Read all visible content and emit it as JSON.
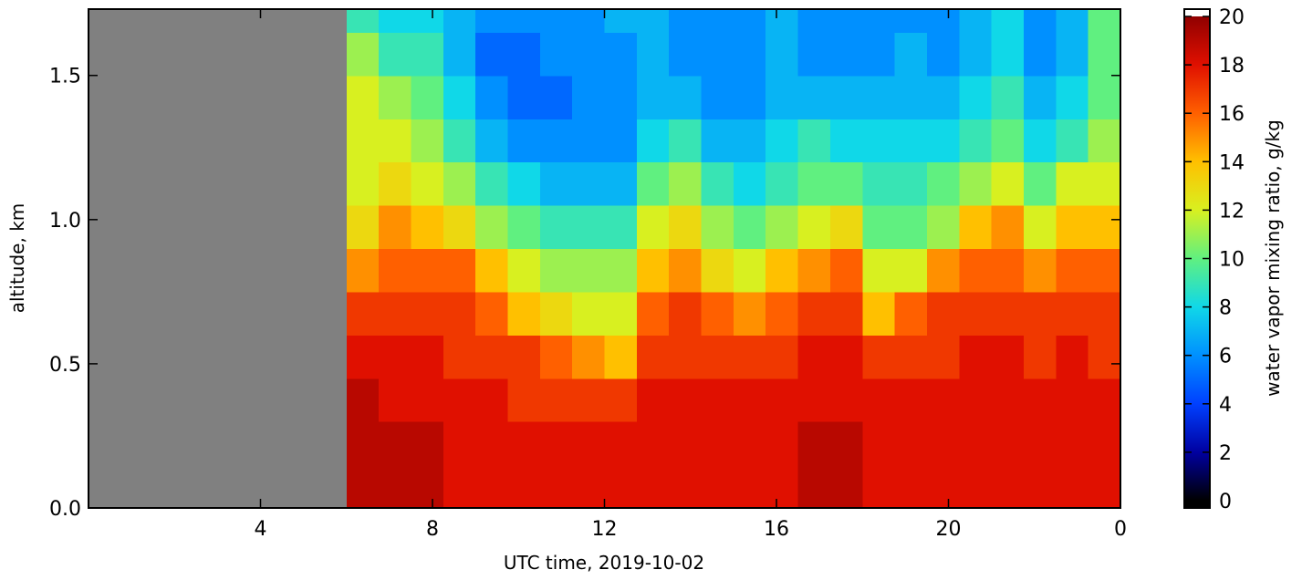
{
  "chart_data": {
    "type": "heatmap",
    "x_label": "UTC time,  2019-10-02",
    "y_label": "altitude, km",
    "colorbar_label": "water vapor mixing ratio, g/kg",
    "xlim": [
      0,
      24
    ],
    "xticks": [
      4,
      8,
      12,
      16,
      20,
      {
        "value": 24,
        "label": "0"
      }
    ],
    "ylim": [
      0,
      1.73
    ],
    "yticks": [
      {
        "value": 0,
        "label": "0.0"
      },
      0.5,
      {
        "value": 1,
        "label": "1.0"
      },
      1.5
    ],
    "clim": [
      0,
      20
    ],
    "cticks": [
      0,
      2,
      4,
      6,
      8,
      10,
      12,
      14,
      16,
      18,
      20
    ],
    "colormap": [
      "#000000",
      "#0000a0",
      "#0040ff",
      "#0090ff",
      "#10d8e8",
      "#60f080",
      "#d8f020",
      "#ffc000",
      "#ff6000",
      "#e01000",
      "#900000"
    ],
    "over_color": "#ffffff",
    "under_color": "#000000",
    "missing_color": "#808080",
    "x_edges": [
      6,
      6.75,
      7.5,
      8.25,
      9,
      9.75,
      10.5,
      11.25,
      12,
      12.75,
      13.5,
      14.25,
      15,
      15.75,
      16.5,
      17.25,
      18,
      18.75,
      19.5,
      20.25,
      21,
      21.75,
      22.5,
      23.25,
      24
    ],
    "y_edges": [
      0,
      0.15,
      0.3,
      0.45,
      0.6,
      0.75,
      0.9,
      1.05,
      1.2,
      1.35,
      1.5,
      1.65,
      1.73
    ],
    "z": [
      [
        19,
        19,
        19,
        18,
        18,
        18,
        18,
        18,
        18,
        18,
        18,
        18,
        18,
        18,
        19,
        19,
        18,
        18,
        18,
        18,
        18,
        18,
        18,
        18
      ],
      [
        19,
        19,
        19,
        18,
        18,
        18,
        18,
        18,
        18,
        18,
        18,
        18,
        18,
        18,
        19,
        19,
        18,
        18,
        18,
        18,
        18,
        18,
        18,
        18
      ],
      [
        19,
        18,
        18,
        18,
        18,
        17,
        17,
        17,
        17,
        18,
        18,
        18,
        18,
        18,
        18,
        18,
        18,
        18,
        18,
        18,
        18,
        18,
        18,
        18
      ],
      [
        18,
        18,
        18,
        17,
        17,
        17,
        16,
        15,
        14,
        17,
        17,
        17,
        17,
        17,
        18,
        18,
        17,
        17,
        17,
        18,
        18,
        17,
        18,
        17
      ],
      [
        17,
        17,
        17,
        17,
        16,
        14,
        13,
        12,
        12,
        16,
        17,
        16,
        15,
        16,
        17,
        17,
        14,
        16,
        17,
        17,
        17,
        17,
        17,
        17
      ],
      [
        15,
        16,
        16,
        16,
        14,
        12,
        11,
        11,
        11,
        14,
        15,
        13,
        12,
        14,
        15,
        16,
        12,
        12,
        15,
        16,
        16,
        15,
        16,
        16
      ],
      [
        13,
        15,
        14,
        13,
        11,
        10,
        9,
        9,
        9,
        12,
        13,
        11,
        10,
        11,
        12,
        13,
        10,
        10,
        11,
        14,
        15,
        12,
        14,
        14
      ],
      [
        12,
        13,
        12,
        11,
        9,
        8,
        7,
        7,
        7,
        10,
        11,
        9,
        8,
        9,
        10,
        10,
        9,
        9,
        10,
        11,
        12,
        10,
        12,
        12
      ],
      [
        12,
        12,
        11,
        9,
        7,
        6,
        6,
        6,
        6,
        8,
        9,
        7,
        7,
        8,
        9,
        8,
        8,
        8,
        8,
        9,
        10,
        8,
        9,
        11
      ],
      [
        12,
        11,
        10,
        8,
        6,
        5,
        5,
        6,
        6,
        7,
        7,
        6,
        6,
        7,
        7,
        7,
        7,
        7,
        7,
        8,
        9,
        7,
        8,
        10
      ],
      [
        11,
        9,
        9,
        7,
        5,
        5,
        6,
        6,
        6,
        7,
        6,
        6,
        6,
        7,
        6,
        6,
        6,
        7,
        6,
        7,
        8,
        6,
        7,
        10
      ],
      [
        9,
        8,
        8,
        7,
        6,
        6,
        6,
        6,
        7,
        7,
        6,
        6,
        6,
        7,
        6,
        6,
        6,
        6,
        6,
        7,
        8,
        6,
        7,
        10
      ]
    ]
  }
}
